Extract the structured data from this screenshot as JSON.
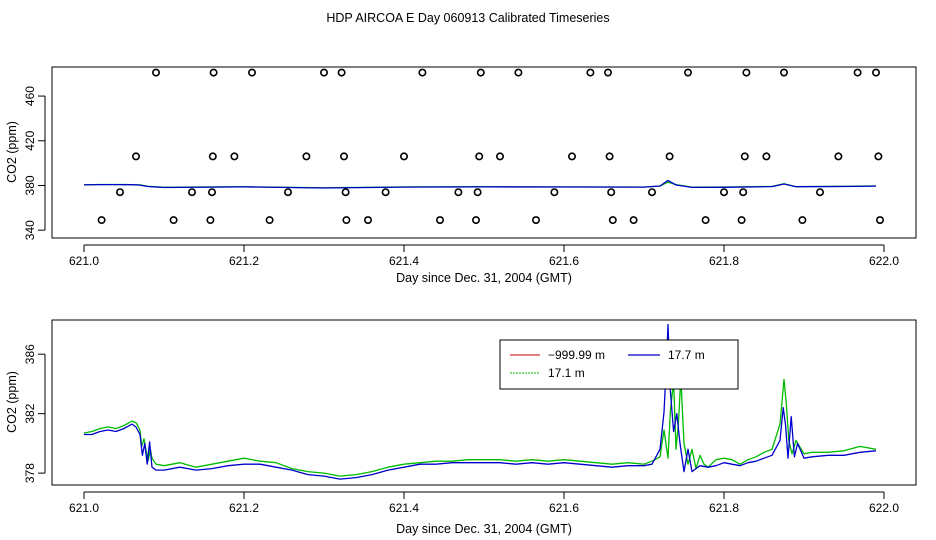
{
  "title": "HDP AIRCOA E  Day 060913  Calibrated Timeseries",
  "colors": {
    "red": "#cc0000",
    "green": "#00bb00",
    "blue": "#0000cc",
    "black": "#000000"
  },
  "chart_data": [
    {
      "type": "scatter",
      "xlabel": "Day since Dec. 31, 2004 (GMT)",
      "ylabel": "CO2 (ppm)",
      "xlim": [
        620.96,
        622.04
      ],
      "ylim": [
        333,
        486
      ],
      "xticks": [
        621.0,
        621.2,
        621.4,
        621.6,
        621.8,
        622.0
      ],
      "xtick_labels": [
        "621.0",
        "621.2",
        "621.4",
        "621.6",
        "621.8",
        "622.0"
      ],
      "yticks": [
        340,
        380,
        420,
        460
      ],
      "ytick_labels": [
        "340",
        "380",
        "420",
        "460"
      ],
      "calibration_points": [
        [
          621.022,
          349
        ],
        [
          621.045,
          374
        ],
        [
          621.065,
          406
        ],
        [
          621.09,
          481
        ],
        [
          621.112,
          349
        ],
        [
          621.135,
          374
        ],
        [
          621.158,
          349
        ],
        [
          621.16,
          374
        ],
        [
          621.161,
          406
        ],
        [
          621.162,
          481
        ],
        [
          621.188,
          406
        ],
        [
          621.21,
          481
        ],
        [
          621.232,
          349
        ],
        [
          621.255,
          374
        ],
        [
          621.278,
          406
        ],
        [
          621.3,
          481
        ],
        [
          621.322,
          481
        ],
        [
          621.325,
          406
        ],
        [
          621.327,
          374
        ],
        [
          621.328,
          349
        ],
        [
          621.355,
          349
        ],
        [
          621.377,
          374
        ],
        [
          621.4,
          406
        ],
        [
          621.423,
          481
        ],
        [
          621.445,
          349
        ],
        [
          621.468,
          374
        ],
        [
          621.49,
          349
        ],
        [
          621.492,
          374
        ],
        [
          621.494,
          406
        ],
        [
          621.496,
          481
        ],
        [
          621.52,
          406
        ],
        [
          621.543,
          481
        ],
        [
          621.565,
          349
        ],
        [
          621.588,
          374
        ],
        [
          621.61,
          406
        ],
        [
          621.633,
          481
        ],
        [
          621.655,
          481
        ],
        [
          621.657,
          406
        ],
        [
          621.659,
          374
        ],
        [
          621.661,
          349
        ],
        [
          621.687,
          349
        ],
        [
          621.71,
          374
        ],
        [
          621.732,
          406
        ],
        [
          621.755,
          481
        ],
        [
          621.777,
          349
        ],
        [
          621.8,
          374
        ],
        [
          621.822,
          349
        ],
        [
          621.824,
          374
        ],
        [
          621.826,
          406
        ],
        [
          621.828,
          481
        ],
        [
          621.853,
          406
        ],
        [
          621.875,
          481
        ],
        [
          621.898,
          349
        ],
        [
          621.92,
          374
        ],
        [
          621.943,
          406
        ],
        [
          621.967,
          481
        ],
        [
          621.99,
          481
        ],
        [
          621.993,
          406
        ],
        [
          621.995,
          349
        ]
      ],
      "series": [
        {
          "name": "17.1 m",
          "color": "#00bb00",
          "x": [
            621.0,
            621.02,
            621.04,
            621.06,
            621.07,
            621.08,
            621.09,
            621.1,
            621.2,
            621.3,
            621.4,
            621.5,
            621.6,
            621.7,
            621.72,
            621.73,
            621.74,
            621.76,
            621.8,
            621.86,
            621.875,
            621.89,
            621.95,
            621.99
          ],
          "values": [
            380.6,
            380.9,
            380.9,
            380.8,
            380.5,
            379.3,
            378.8,
            378.4,
            378.9,
            377.9,
            378.7,
            378.9,
            378.7,
            378.6,
            379.4,
            383.0,
            380.8,
            378.5,
            378.6,
            379.2,
            381.6,
            379.0,
            379.3,
            379.6
          ]
        },
        {
          "name": "17.7 m",
          "color": "#0000cc",
          "x": [
            621.0,
            621.02,
            621.04,
            621.06,
            621.07,
            621.08,
            621.09,
            621.1,
            621.2,
            621.3,
            621.4,
            621.5,
            621.6,
            621.7,
            621.72,
            621.73,
            621.74,
            621.76,
            621.8,
            621.86,
            621.875,
            621.89,
            621.95,
            621.99
          ],
          "values": [
            380.5,
            380.8,
            380.8,
            380.7,
            380.3,
            379.1,
            378.6,
            378.2,
            378.7,
            377.7,
            378.5,
            378.7,
            378.6,
            378.5,
            379.5,
            384.5,
            380.4,
            378.3,
            378.4,
            379.0,
            381.3,
            378.9,
            379.1,
            379.4
          ]
        }
      ]
    },
    {
      "type": "line",
      "xlabel": "Day since Dec. 31, 2004 (GMT)",
      "ylabel": "CO2 (ppm)",
      "xlim": [
        620.96,
        622.04
      ],
      "ylim": [
        377.2,
        388.3
      ],
      "xticks": [
        621.0,
        621.2,
        621.4,
        621.6,
        621.8,
        622.0
      ],
      "xtick_labels": [
        "621.0",
        "621.2",
        "621.4",
        "621.6",
        "621.8",
        "622.0"
      ],
      "yticks": [
        378,
        382,
        386
      ],
      "ytick_labels": [
        "378",
        "382",
        "386"
      ],
      "legend": [
        {
          "label": "−999.99 m",
          "color": "#cc0000"
        },
        {
          "label": "17.1 m",
          "color": "#00bb00"
        },
        {
          "label": "17.7 m",
          "color": "#0000cc"
        }
      ],
      "series": [
        {
          "name": "17.1 m",
          "color": "#00bb00",
          "x": [
            621.0,
            621.01,
            621.02,
            621.03,
            621.04,
            621.05,
            621.06,
            621.065,
            621.07,
            621.072,
            621.075,
            621.078,
            621.08,
            621.083,
            621.085,
            621.09,
            621.1,
            621.12,
            621.14,
            621.16,
            621.18,
            621.2,
            621.22,
            621.24,
            621.26,
            621.28,
            621.3,
            621.32,
            621.34,
            621.36,
            621.38,
            621.4,
            621.42,
            621.44,
            621.46,
            621.48,
            621.5,
            621.52,
            621.54,
            621.56,
            621.58,
            621.6,
            621.62,
            621.64,
            621.66,
            621.68,
            621.7,
            621.71,
            621.72,
            621.725,
            621.73,
            621.733,
            621.737,
            621.74,
            621.743,
            621.746,
            621.75,
            621.755,
            621.76,
            621.765,
            621.77,
            621.775,
            621.78,
            621.79,
            621.8,
            621.81,
            621.82,
            621.83,
            621.84,
            621.85,
            621.86,
            621.87,
            621.875,
            621.878,
            621.881,
            621.885,
            621.89,
            621.9,
            621.91,
            621.93,
            621.95,
            621.97,
            621.99
          ],
          "values": [
            380.7,
            380.8,
            381.0,
            381.1,
            381.0,
            381.2,
            381.5,
            381.4,
            380.9,
            379.8,
            380.3,
            379.4,
            378.8,
            379.6,
            379.0,
            378.6,
            378.5,
            378.7,
            378.4,
            378.6,
            378.8,
            379.0,
            378.8,
            378.7,
            378.3,
            378.1,
            378.0,
            377.8,
            377.9,
            378.1,
            378.4,
            378.6,
            378.7,
            378.8,
            378.8,
            378.9,
            378.9,
            378.9,
            378.8,
            378.9,
            378.8,
            378.9,
            378.8,
            378.7,
            378.6,
            378.7,
            378.6,
            378.8,
            379.1,
            380.9,
            379.0,
            382.2,
            384.2,
            379.6,
            381.3,
            384.4,
            380.0,
            378.6,
            379.6,
            378.3,
            379.2,
            378.6,
            378.4,
            378.9,
            379.0,
            378.9,
            378.6,
            378.9,
            379.1,
            379.4,
            379.6,
            381.3,
            384.3,
            382.6,
            380.2,
            379.3,
            380.2,
            379.3,
            379.4,
            379.4,
            379.5,
            379.8,
            379.6
          ]
        },
        {
          "name": "17.7 m",
          "color": "#0000cc",
          "x": [
            621.0,
            621.01,
            621.02,
            621.03,
            621.04,
            621.05,
            621.06,
            621.065,
            621.07,
            621.073,
            621.076,
            621.079,
            621.082,
            621.085,
            621.09,
            621.1,
            621.12,
            621.14,
            621.16,
            621.18,
            621.2,
            621.22,
            621.24,
            621.26,
            621.28,
            621.3,
            621.32,
            621.34,
            621.36,
            621.38,
            621.4,
            621.42,
            621.44,
            621.46,
            621.48,
            621.5,
            621.52,
            621.54,
            621.56,
            621.58,
            621.6,
            621.62,
            621.64,
            621.66,
            621.68,
            621.7,
            621.71,
            621.72,
            621.725,
            621.728,
            621.73,
            621.733,
            621.737,
            621.741,
            621.745,
            621.75,
            621.755,
            621.76,
            621.765,
            621.77,
            621.78,
            621.79,
            621.8,
            621.81,
            621.82,
            621.83,
            621.84,
            621.85,
            621.86,
            621.87,
            621.874,
            621.877,
            621.88,
            621.884,
            621.888,
            621.892,
            621.9,
            621.91,
            621.93,
            621.95,
            621.97,
            621.99
          ],
          "values": [
            380.6,
            380.6,
            380.8,
            380.9,
            380.8,
            381.0,
            381.3,
            381.1,
            380.6,
            379.2,
            380.0,
            378.6,
            380.1,
            378.4,
            378.2,
            378.2,
            378.4,
            378.2,
            378.3,
            378.5,
            378.6,
            378.6,
            378.4,
            378.2,
            377.9,
            377.8,
            377.6,
            377.7,
            377.9,
            378.2,
            378.4,
            378.6,
            378.6,
            378.7,
            378.7,
            378.7,
            378.7,
            378.6,
            378.7,
            378.6,
            378.7,
            378.6,
            378.5,
            378.4,
            378.5,
            378.5,
            378.6,
            379.6,
            382.1,
            385.3,
            388.0,
            383.5,
            380.8,
            382.0,
            380.0,
            378.1,
            379.6,
            378.1,
            378.3,
            378.5,
            378.4,
            378.5,
            378.7,
            378.6,
            378.5,
            378.7,
            378.8,
            379.0,
            379.2,
            380.2,
            382.4,
            381.2,
            379.0,
            381.8,
            379.1,
            380.0,
            379.0,
            379.1,
            379.2,
            379.2,
            379.4,
            379.5
          ]
        }
      ]
    }
  ]
}
